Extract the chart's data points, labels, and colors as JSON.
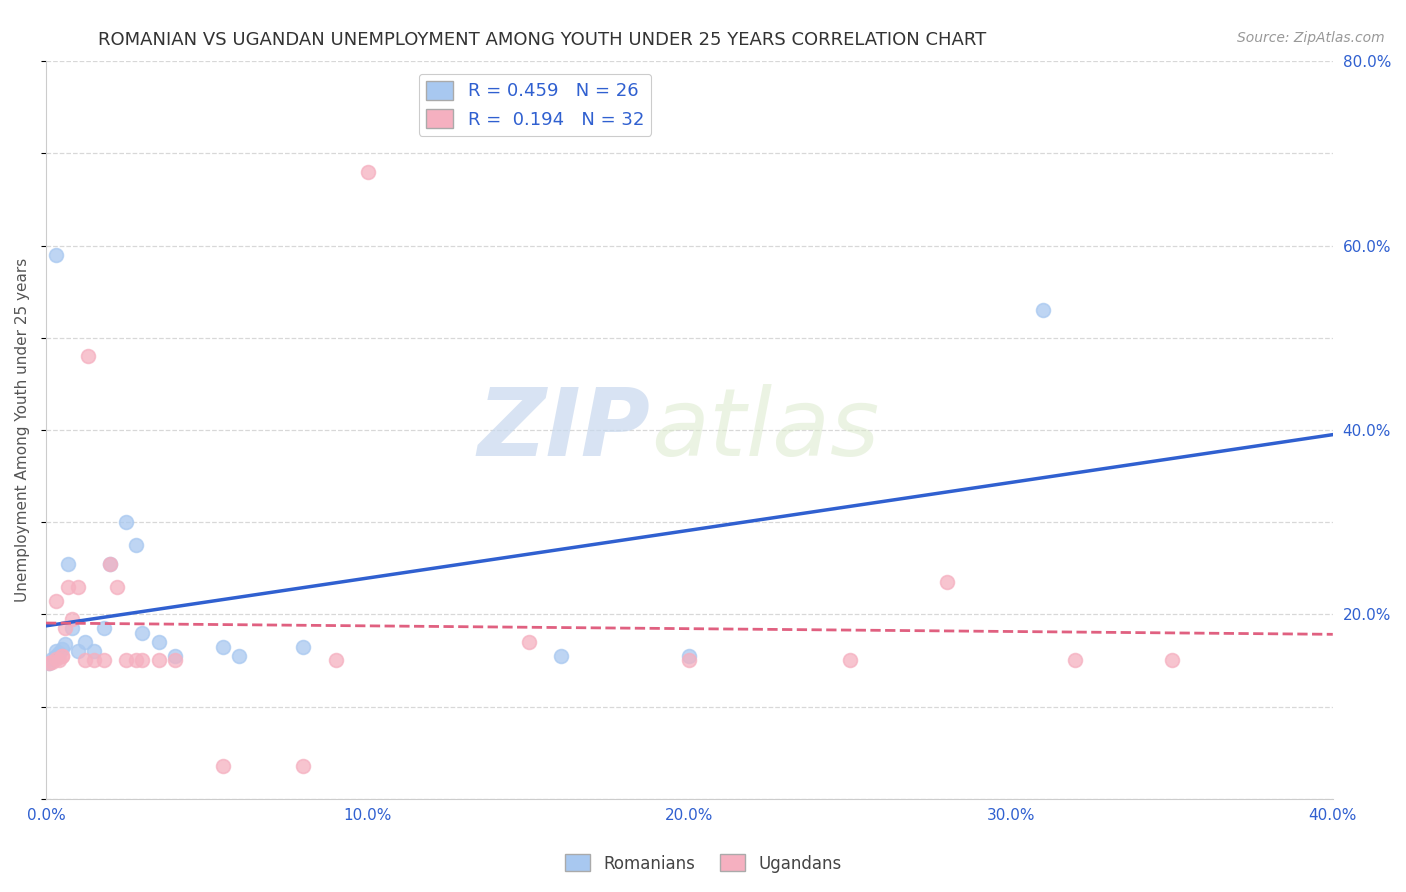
{
  "title": "ROMANIAN VS UGANDAN UNEMPLOYMENT AMONG YOUTH UNDER 25 YEARS CORRELATION CHART",
  "source": "Source: ZipAtlas.com",
  "ylabel": "Unemployment Among Youth under 25 years",
  "xlim": [
    0.0,
    0.4
  ],
  "ylim": [
    0.0,
    0.8
  ],
  "xticks": [
    0.0,
    0.1,
    0.2,
    0.3,
    0.4
  ],
  "yticks": [
    0.0,
    0.2,
    0.4,
    0.6,
    0.8
  ],
  "xtick_labels": [
    "0.0%",
    "10.0%",
    "20.0%",
    "30.0%",
    "40.0%"
  ],
  "ytick_labels": [
    "",
    "20.0%",
    "40.0%",
    "60.0%",
    "80.0%"
  ],
  "background_color": "#ffffff",
  "grid_color": "#d8d8d8",
  "romanian_color": "#a8c8f0",
  "ugandan_color": "#f5b0c0",
  "romanian_line_color": "#3060d0",
  "ugandan_line_color": "#e06080",
  "R_romanian": 0.459,
  "N_romanian": 26,
  "R_ugandan": 0.194,
  "N_ugandan": 32,
  "romanians_x": [
    0.001,
    0.002,
    0.003,
    0.003,
    0.004,
    0.005,
    0.006,
    0.007,
    0.008,
    0.01,
    0.012,
    0.015,
    0.018,
    0.02,
    0.025,
    0.028,
    0.03,
    0.035,
    0.04,
    0.055,
    0.06,
    0.08,
    0.16,
    0.2,
    0.31,
    0.003
  ],
  "romanians_y": [
    0.147,
    0.152,
    0.155,
    0.16,
    0.158,
    0.162,
    0.168,
    0.255,
    0.185,
    0.16,
    0.17,
    0.16,
    0.185,
    0.255,
    0.3,
    0.275,
    0.18,
    0.17,
    0.155,
    0.165,
    0.155,
    0.165,
    0.155,
    0.155,
    0.53,
    0.59
  ],
  "ugandans_x": [
    0.001,
    0.002,
    0.003,
    0.003,
    0.004,
    0.005,
    0.005,
    0.006,
    0.007,
    0.008,
    0.01,
    0.012,
    0.013,
    0.015,
    0.018,
    0.02,
    0.022,
    0.025,
    0.028,
    0.03,
    0.035,
    0.04,
    0.055,
    0.08,
    0.09,
    0.1,
    0.15,
    0.2,
    0.25,
    0.28,
    0.32,
    0.35
  ],
  "ugandans_y": [
    0.147,
    0.148,
    0.152,
    0.215,
    0.15,
    0.155,
    0.155,
    0.185,
    0.23,
    0.195,
    0.23,
    0.15,
    0.48,
    0.15,
    0.15,
    0.255,
    0.23,
    0.15,
    0.15,
    0.15,
    0.15,
    0.15,
    0.035,
    0.035,
    0.15,
    0.68,
    0.17,
    0.15,
    0.15,
    0.235,
    0.15,
    0.15
  ],
  "watermark_zip": "ZIP",
  "watermark_atlas": "atlas",
  "title_fontsize": 13,
  "axis_label_fontsize": 11,
  "tick_fontsize": 11,
  "legend_fontsize": 13,
  "marker_size": 100
}
